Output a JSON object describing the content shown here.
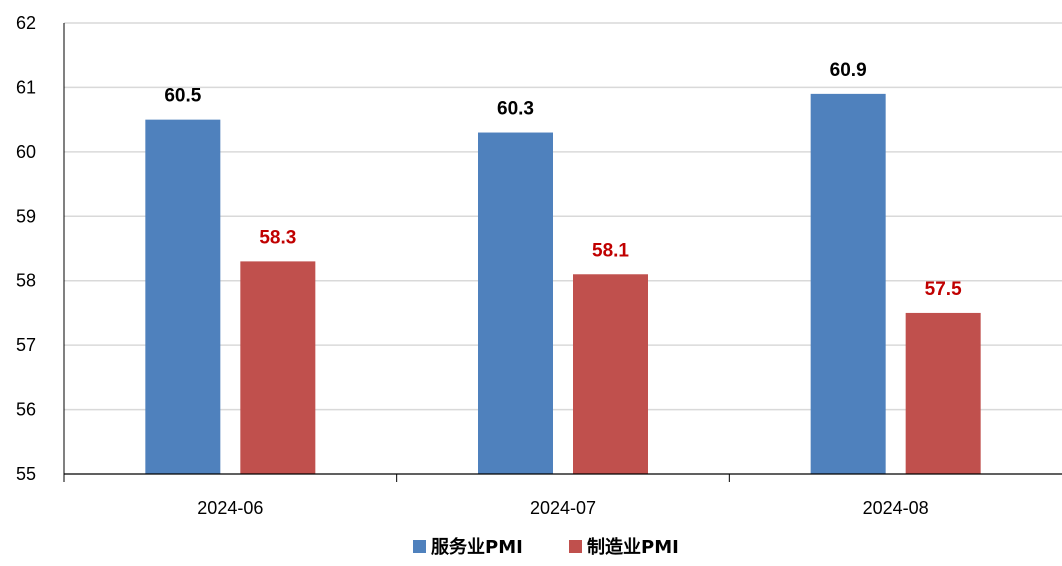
{
  "chart_data": {
    "type": "bar",
    "categories": [
      "2024-06",
      "2024-07",
      "2024-08"
    ],
    "series": [
      {
        "name": "服务业PMI",
        "values": [
          60.5,
          60.3,
          60.9
        ],
        "color": "#4F81BD",
        "label_color": "#000000"
      },
      {
        "name": "制造业PMI",
        "values": [
          58.3,
          58.1,
          57.5
        ],
        "color": "#C0504D",
        "label_color": "#C00000"
      }
    ],
    "ylim": [
      55,
      62
    ],
    "yticks": [
      55,
      56,
      57,
      58,
      59,
      60,
      61,
      62
    ],
    "grid": true,
    "legend_position": "bottom-center"
  }
}
